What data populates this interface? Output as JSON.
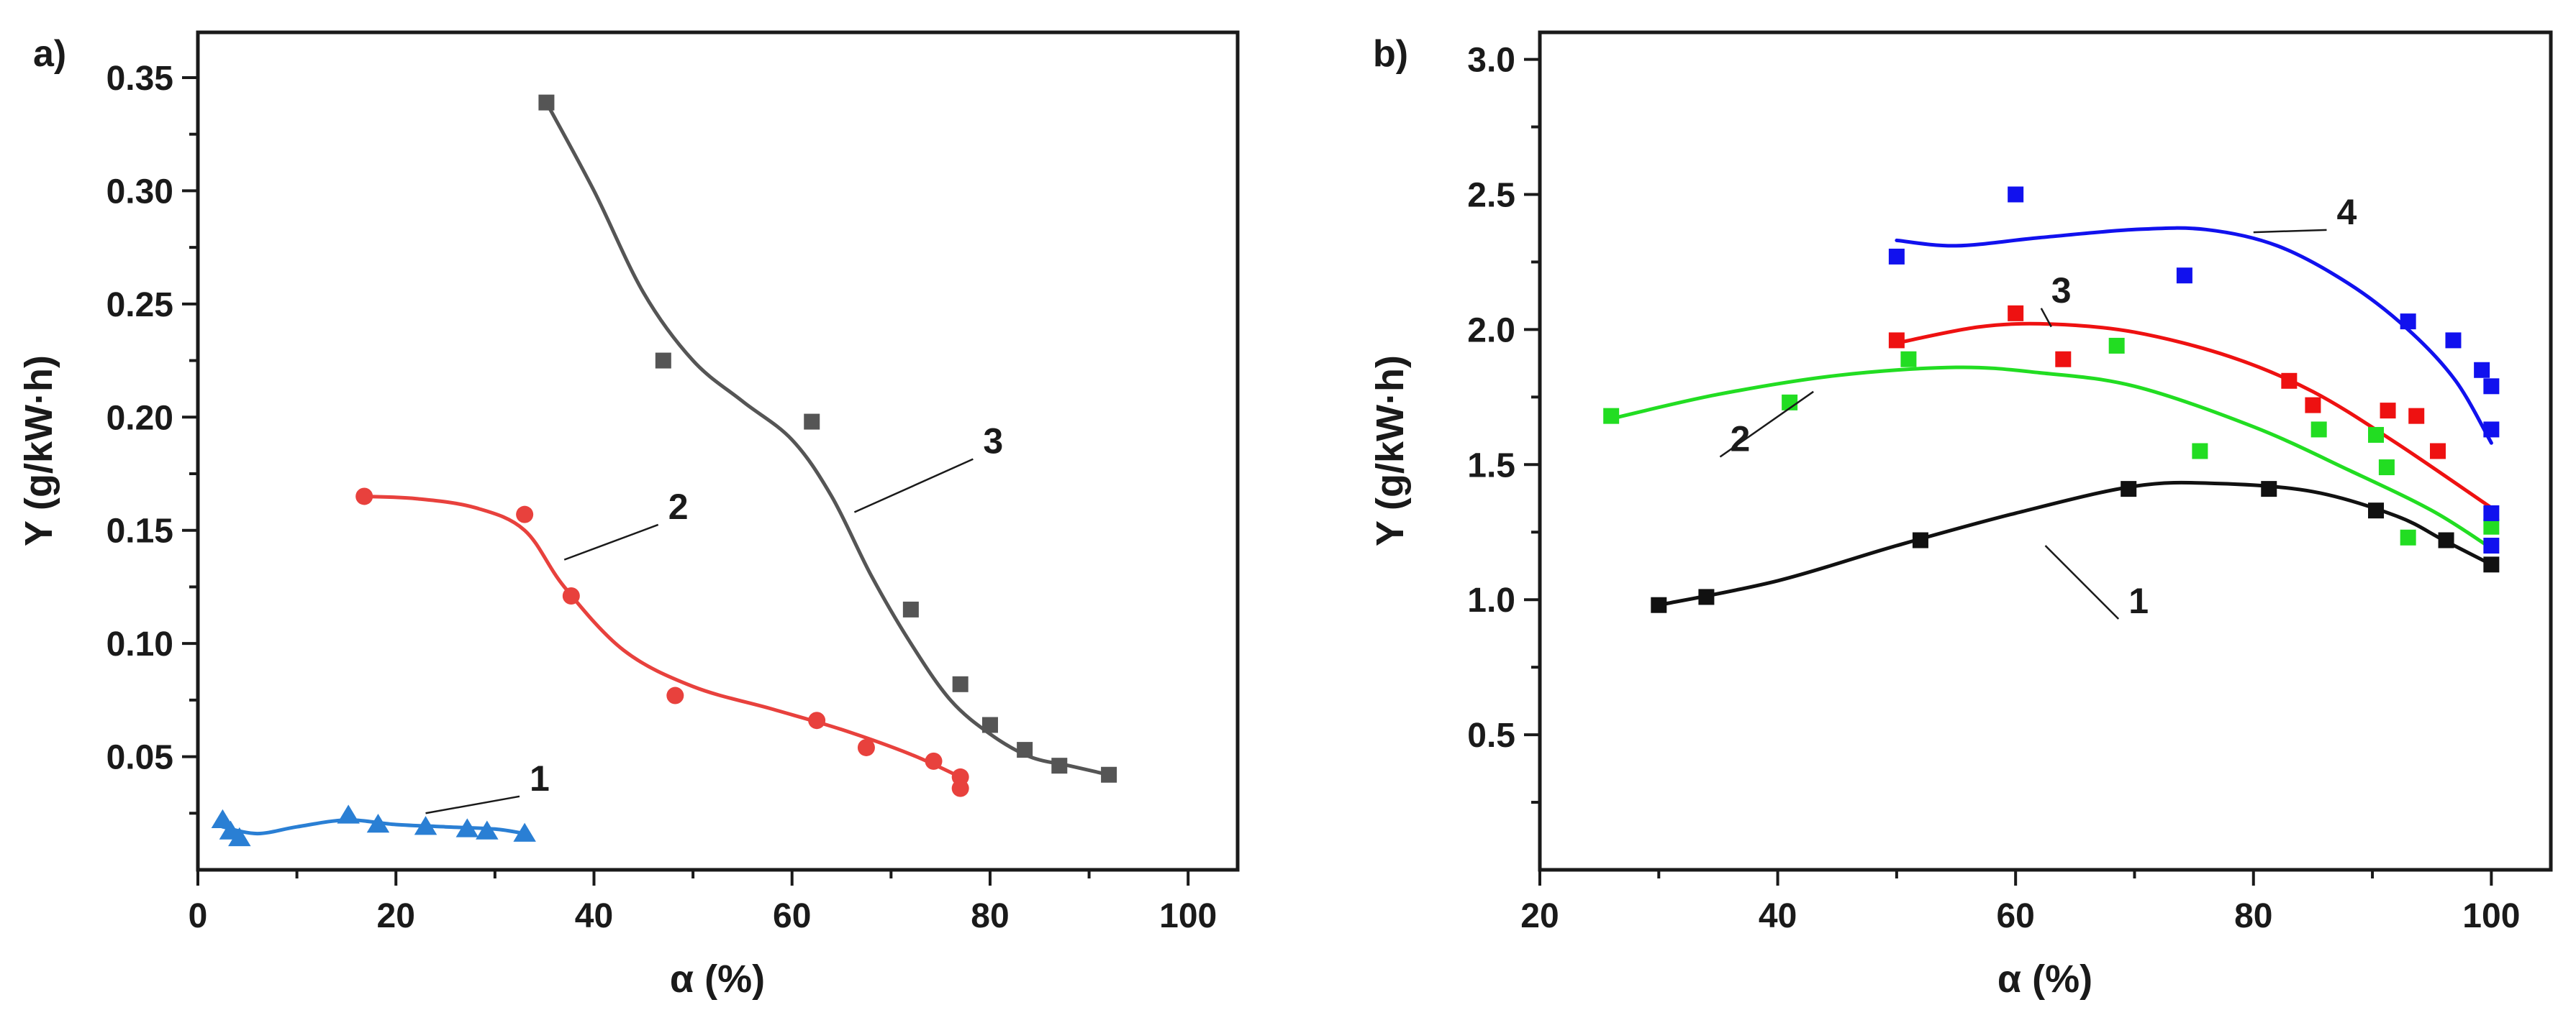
{
  "chart_data": [
    {
      "panel": "a)",
      "type": "scatter",
      "xlabel": "α (%)",
      "ylabel": "Y (g/kW·h)",
      "xlim": [
        0,
        105
      ],
      "ylim": [
        0,
        0.37
      ],
      "xticks": [
        0,
        20,
        40,
        60,
        80,
        100
      ],
      "yticks": [
        0.05,
        0.1,
        0.15,
        0.2,
        0.25,
        0.3,
        0.35
      ],
      "xtick_labels": [
        "0",
        "20",
        "40",
        "60",
        "80",
        "100"
      ],
      "ytick_labels": [
        "0.05",
        "0.10",
        "0.15",
        "0.20",
        "0.25",
        "0.30",
        "0.35"
      ],
      "series": [
        {
          "name": "1",
          "color": "#2a7fd4",
          "marker": "triangle",
          "x": [
            2.5,
            3.3,
            4.2,
            15.2,
            18.2,
            23.0,
            27.2,
            29.2,
            33.0
          ],
          "y": [
            0.022,
            0.017,
            0.014,
            0.024,
            0.02,
            0.019,
            0.018,
            0.017,
            0.016
          ],
          "fit_x": [
            2.5,
            6,
            10,
            15,
            20,
            25,
            30,
            33
          ],
          "fit_y": [
            0.019,
            0.016,
            0.019,
            0.022,
            0.02,
            0.019,
            0.018,
            0.016
          ],
          "label_pos": [
            33.5,
            0.035
          ],
          "label_target": [
            23.0,
            0.025
          ]
        },
        {
          "name": "2",
          "color": "#e8413d",
          "marker": "circle",
          "x": [
            16.8,
            33.0,
            37.7,
            48.2,
            62.5,
            67.5,
            74.3,
            77.0,
            77.0
          ],
          "y": [
            0.165,
            0.157,
            0.121,
            0.077,
            0.066,
            0.054,
            0.048,
            0.041,
            0.036
          ],
          "fit_x": [
            16.8,
            22,
            28,
            33,
            37,
            43,
            50,
            58,
            65,
            72,
            77
          ],
          "fit_y": [
            0.165,
            0.164,
            0.16,
            0.15,
            0.125,
            0.097,
            0.081,
            0.071,
            0.062,
            0.051,
            0.041
          ],
          "label_pos": [
            47.5,
            0.155
          ],
          "label_target": [
            37.0,
            0.137
          ]
        },
        {
          "name": "3",
          "color": "#555555",
          "marker": "square",
          "x": [
            35.2,
            47.0,
            62.0,
            72.0,
            77.0,
            80.0,
            83.5,
            87.0,
            92.0
          ],
          "y": [
            0.339,
            0.225,
            0.198,
            0.115,
            0.082,
            0.064,
            0.053,
            0.046,
            0.042
          ],
          "fit_x": [
            35.2,
            40,
            45,
            50,
            55,
            60,
            64,
            68,
            72,
            76,
            80,
            84,
            88,
            92
          ],
          "fit_y": [
            0.339,
            0.3,
            0.255,
            0.225,
            0.207,
            0.19,
            0.165,
            0.13,
            0.1,
            0.075,
            0.06,
            0.05,
            0.046,
            0.042
          ],
          "label_pos": [
            79.3,
            0.184
          ],
          "label_target": [
            66.3,
            0.158
          ]
        }
      ]
    },
    {
      "panel": "b)",
      "type": "scatter",
      "xlabel": "α (%)",
      "ylabel": "Y (g/kW·h)",
      "xlim": [
        20,
        105
      ],
      "ylim": [
        0,
        3.1
      ],
      "xticks": [
        20,
        40,
        60,
        80,
        100
      ],
      "yticks": [
        0.5,
        1.0,
        1.5,
        2.0,
        2.5,
        3.0
      ],
      "xtick_labels": [
        "20",
        "40",
        "60",
        "80",
        "100"
      ],
      "ytick_labels": [
        "0.5",
        "1.0",
        "1.5",
        "2.0",
        "2.5",
        "3.0"
      ],
      "series": [
        {
          "name": "1",
          "color": "#111111",
          "marker": "square",
          "x": [
            30,
            34,
            52,
            69.5,
            81.3,
            90.3,
            96.2,
            100
          ],
          "y": [
            0.98,
            1.01,
            1.22,
            1.41,
            1.41,
            1.33,
            1.22,
            1.13
          ],
          "fit_x": [
            30,
            40,
            50,
            60,
            70,
            77,
            85,
            92,
            96,
            100
          ],
          "fit_y": [
            0.98,
            1.07,
            1.2,
            1.32,
            1.42,
            1.43,
            1.4,
            1.31,
            1.22,
            1.13
          ],
          "label_pos": [
            69.5,
            0.95
          ],
          "label_target": [
            62.5,
            1.2
          ]
        },
        {
          "name": "2",
          "color": "#22dd22",
          "marker": "square",
          "x": [
            26,
            41,
            51,
            68.5,
            75.5,
            85.5,
            90.3,
            91.2,
            93,
            100
          ],
          "y": [
            1.68,
            1.73,
            1.89,
            1.94,
            1.55,
            1.63,
            1.61,
            1.49,
            1.23,
            1.27
          ],
          "fit_x": [
            26,
            35,
            45,
            55,
            62,
            70,
            80,
            88,
            95,
            100
          ],
          "fit_y": [
            1.67,
            1.76,
            1.83,
            1.86,
            1.84,
            1.79,
            1.64,
            1.48,
            1.33,
            1.19
          ],
          "label_pos": [
            36,
            1.55
          ],
          "label_target": [
            43,
            1.77
          ]
        },
        {
          "name": "3",
          "color": "#ee1111",
          "marker": "square",
          "x": [
            50,
            60,
            64,
            83,
            85,
            91.3,
            93.7,
            95.5
          ],
          "y": [
            1.96,
            2.06,
            1.89,
            1.81,
            1.72,
            1.7,
            1.68,
            1.55
          ],
          "fit_x": [
            50,
            57,
            63,
            70,
            78,
            85,
            92,
            100
          ],
          "fit_y": [
            1.95,
            2.01,
            2.02,
            1.99,
            1.9,
            1.77,
            1.58,
            1.34
          ],
          "label_pos": [
            63,
            2.1
          ],
          "label_target": [
            63,
            2.01
          ]
        },
        {
          "name": "4",
          "color": "#1111ee",
          "marker": "square",
          "x": [
            50,
            60,
            74.2,
            93,
            96.8,
            99.2,
            100,
            100,
            100,
            100
          ],
          "y": [
            2.27,
            2.5,
            2.2,
            2.03,
            1.96,
            1.85,
            1.79,
            1.63,
            1.32,
            1.2
          ],
          "fit_x": [
            50,
            55,
            62,
            70,
            76,
            82,
            88,
            93,
            97,
            100
          ],
          "fit_y": [
            2.33,
            2.31,
            2.34,
            2.37,
            2.37,
            2.31,
            2.17,
            2.0,
            1.81,
            1.58
          ],
          "label_pos": [
            87,
            2.39
          ],
          "label_target": [
            80,
            2.36
          ]
        }
      ]
    }
  ]
}
